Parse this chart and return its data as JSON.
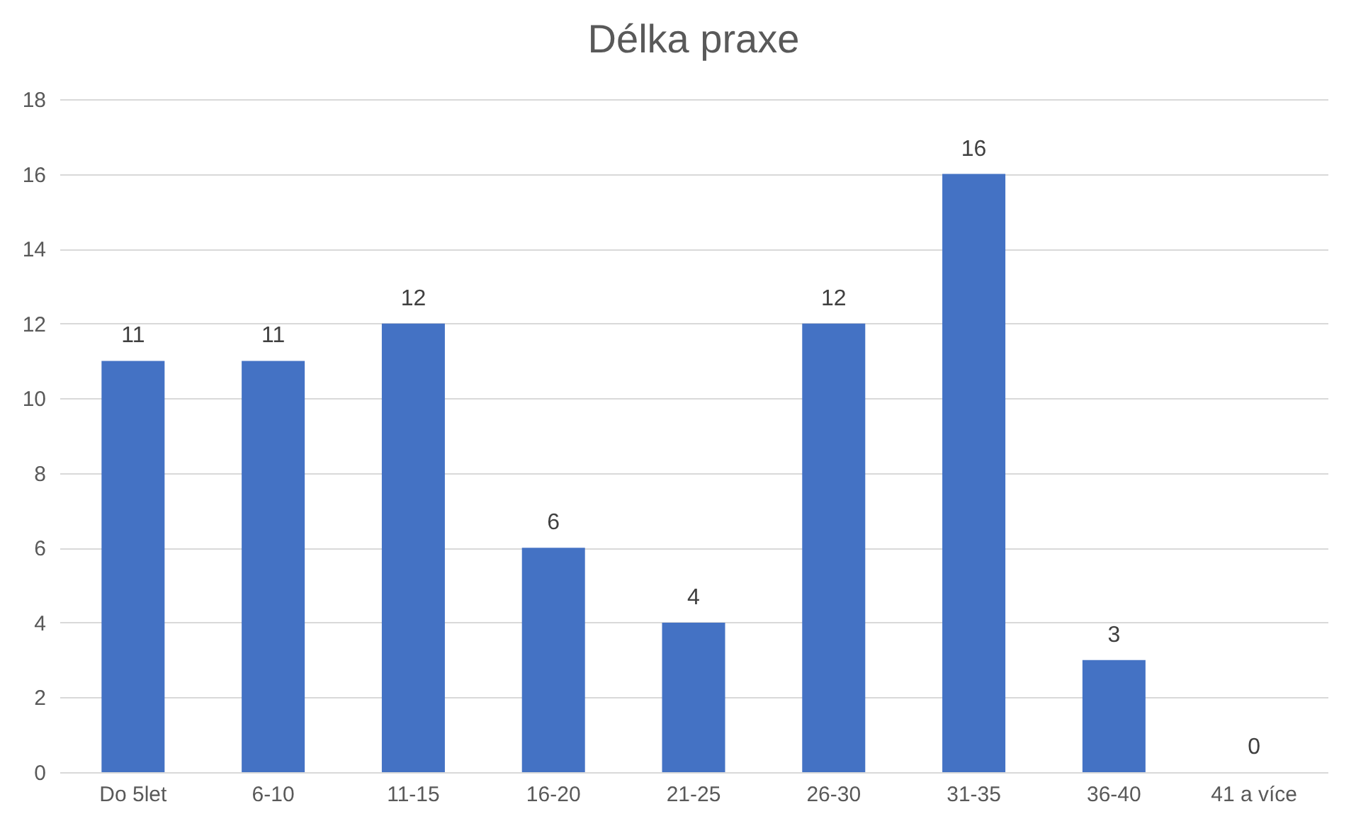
{
  "chart_data": {
    "type": "bar",
    "title": "Délka praxe",
    "categories": [
      "Do 5let",
      "6-10",
      "11-15",
      "16-20",
      "21-25",
      "26-30",
      "31-35",
      "36-40",
      "41 a více"
    ],
    "values": [
      11,
      11,
      12,
      6,
      4,
      12,
      16,
      3,
      0
    ],
    "color": "#4472c4",
    "ylim": [
      0,
      18
    ],
    "yticks": [
      0,
      2,
      4,
      6,
      8,
      10,
      12,
      14,
      16,
      18
    ],
    "grid": "y",
    "data_labels": true
  }
}
